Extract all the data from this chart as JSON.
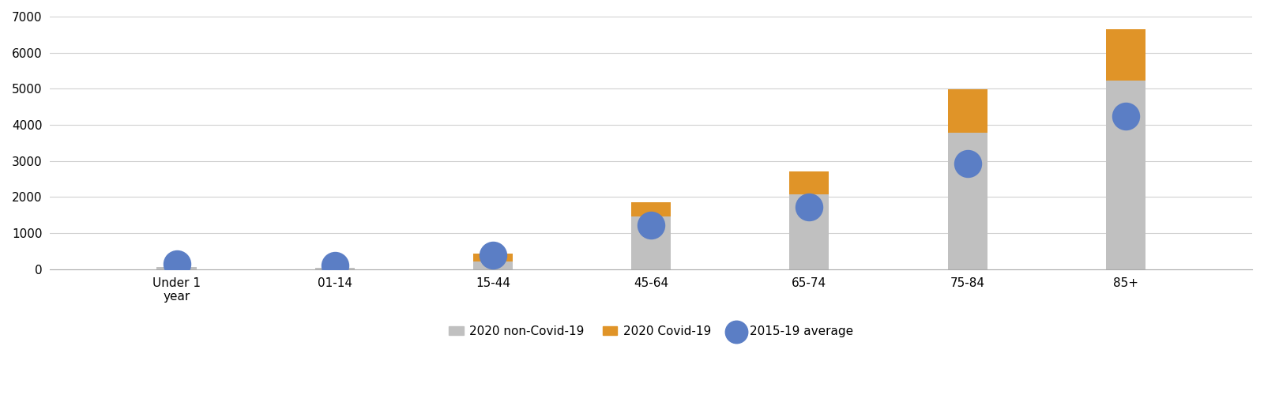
{
  "categories": [
    "Under 1\nyear",
    "01-14",
    "15-44",
    "45-64",
    "65-74",
    "75-84",
    "85+"
  ],
  "non_covid": [
    55,
    40,
    215,
    1470,
    2080,
    3780,
    5230
  ],
  "covid": [
    5,
    5,
    230,
    390,
    620,
    1200,
    1420
  ],
  "avg_2015_19": [
    150,
    100,
    385,
    1230,
    1720,
    2930,
    4250
  ],
  "bar_color_non_covid": "#c0c0c0",
  "bar_color_covid": "#e09428",
  "dot_color_avg": "#5b7ec5",
  "ylim": [
    0,
    7000
  ],
  "yticks": [
    0,
    1000,
    2000,
    3000,
    4000,
    5000,
    6000,
    7000
  ],
  "legend_labels": [
    "2020 non-Covid-19",
    "2020 Covid-19",
    "2015-19 average"
  ],
  "background_color": "#ffffff",
  "grid_color": "#d0d0d0",
  "bar_width": 0.25,
  "dot_size": 600,
  "title": ""
}
